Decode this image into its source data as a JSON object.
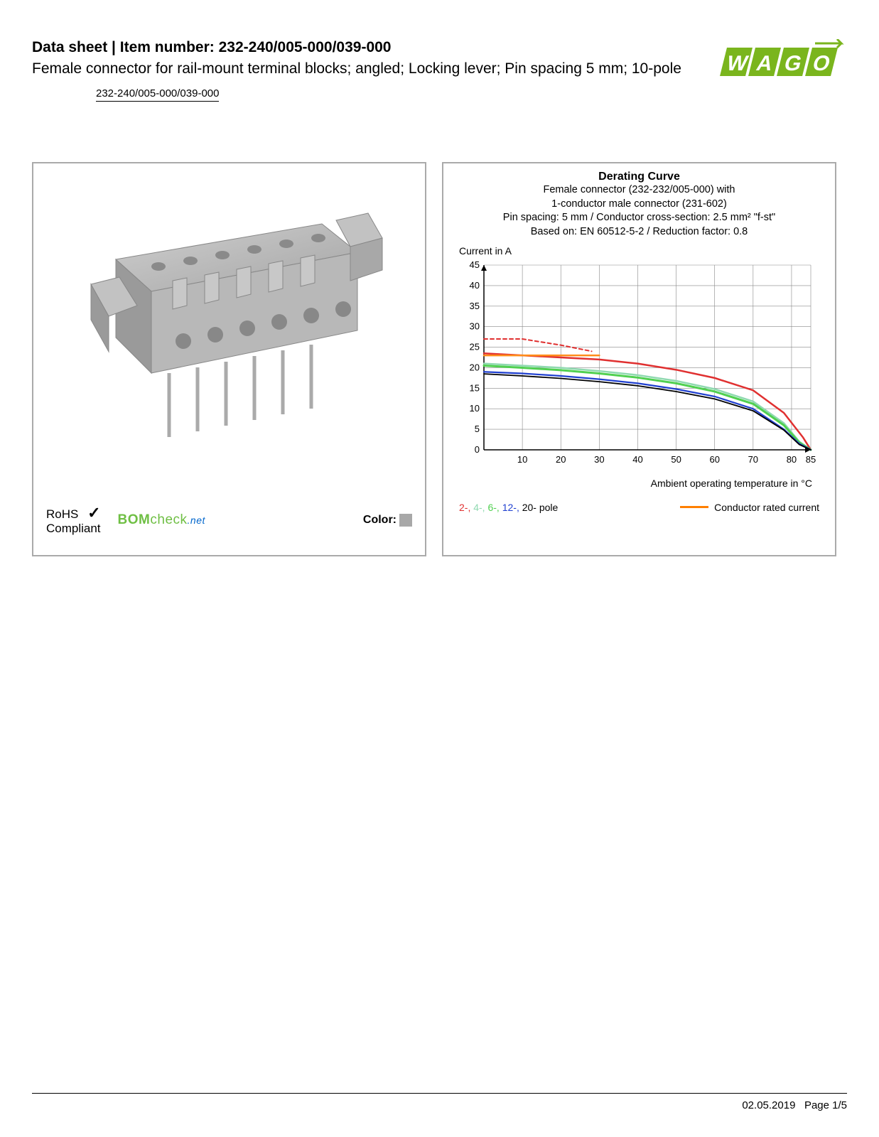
{
  "header": {
    "title_prefix": "Data sheet  |  Item number: ",
    "item_number": "232-240/005-000/039-000",
    "subtitle": "Female connector for rail-mount terminal blocks; angled; Locking lever; Pin spacing 5 mm; 10-pole",
    "item_tag": "232-240/005-000/039-000"
  },
  "logo": {
    "text": "WAGO",
    "fill": "#7ab51d",
    "shadow": "#5c8a14"
  },
  "product_panel": {
    "connector_color": "#b8b8b8",
    "connector_shadow": "#9a9a9a",
    "pin_color": "#c8c8c8",
    "rohs_line1": "RoHS",
    "rohs_line2": "Compliant",
    "bomcheck_main": "BOM",
    "bomcheck_check": "check",
    "bomcheck_net": ".net",
    "color_label": "Color:",
    "color_swatch": "#a8a8a8"
  },
  "chart": {
    "title": "Derating Curve",
    "sub1": "Female connector (232-232/005-000) with",
    "sub2": "1-conductor male connector (231-602)",
    "sub3": "Pin spacing: 5 mm / Conductor cross-section: 2.5 mm² \"f-st\"",
    "sub4": "Based on: EN 60512-5-2 / Reduction factor: 0.8",
    "y_axis_label": "Current in A",
    "x_axis_label": "Ambient operating temperature in °C",
    "xlim": [
      0,
      85
    ],
    "ylim": [
      0,
      45
    ],
    "x_ticks": [
      10,
      20,
      30,
      40,
      50,
      60,
      70,
      80,
      85
    ],
    "y_ticks": [
      0,
      5,
      10,
      15,
      20,
      25,
      30,
      35,
      40,
      45
    ],
    "grid_color": "#888",
    "axis_color": "#000",
    "plot_bg": "#ffffff",
    "series": [
      {
        "name": "2-pole",
        "color": "#e03030",
        "dash": "none",
        "width": 2.5,
        "points": [
          [
            0,
            23.5
          ],
          [
            10,
            23
          ],
          [
            20,
            22.5
          ],
          [
            30,
            22
          ],
          [
            40,
            21
          ],
          [
            50,
            19.5
          ],
          [
            60,
            17.5
          ],
          [
            70,
            14.5
          ],
          [
            78,
            9
          ],
          [
            83,
            3
          ],
          [
            85,
            0
          ]
        ]
      },
      {
        "name": "2-pole-dashed",
        "color": "#e03030",
        "dash": "5,4",
        "width": 2,
        "points": [
          [
            0,
            27
          ],
          [
            10,
            27
          ],
          [
            20,
            25.5
          ],
          [
            28,
            24
          ]
        ]
      },
      {
        "name": "4-pole",
        "color": "#8fd9b0",
        "dash": "none",
        "width": 2.5,
        "points": [
          [
            0,
            21
          ],
          [
            10,
            20.5
          ],
          [
            20,
            20
          ],
          [
            30,
            19.2
          ],
          [
            40,
            18.2
          ],
          [
            50,
            16.8
          ],
          [
            60,
            14.8
          ],
          [
            70,
            11.8
          ],
          [
            78,
            6.5
          ],
          [
            82,
            2
          ],
          [
            85,
            0
          ]
        ]
      },
      {
        "name": "6-pole",
        "color": "#50d050",
        "dash": "none",
        "width": 3,
        "points": [
          [
            0,
            20.5
          ],
          [
            10,
            20
          ],
          [
            20,
            19.4
          ],
          [
            30,
            18.6
          ],
          [
            40,
            17.6
          ],
          [
            50,
            16.2
          ],
          [
            60,
            14.2
          ],
          [
            70,
            11.2
          ],
          [
            78,
            6
          ],
          [
            82,
            1.8
          ],
          [
            85,
            0
          ]
        ]
      },
      {
        "name": "12-pole",
        "color": "#2040d0",
        "dash": "none",
        "width": 2.2,
        "points": [
          [
            0,
            19
          ],
          [
            10,
            18.6
          ],
          [
            20,
            18
          ],
          [
            30,
            17.2
          ],
          [
            40,
            16.2
          ],
          [
            50,
            14.8
          ],
          [
            60,
            13
          ],
          [
            70,
            10
          ],
          [
            78,
            5
          ],
          [
            82,
            1.5
          ],
          [
            85,
            0
          ]
        ]
      },
      {
        "name": "20-pole",
        "color": "#000000",
        "dash": "none",
        "width": 1.8,
        "points": [
          [
            0,
            18.5
          ],
          [
            10,
            18
          ],
          [
            20,
            17.4
          ],
          [
            30,
            16.6
          ],
          [
            40,
            15.6
          ],
          [
            50,
            14.2
          ],
          [
            60,
            12.4
          ],
          [
            70,
            9.5
          ],
          [
            78,
            4.8
          ],
          [
            82,
            1.3
          ],
          [
            85,
            0
          ]
        ]
      },
      {
        "name": "conductor-rated",
        "color": "#ff8c1a",
        "dash": "none",
        "width": 2.5,
        "points": [
          [
            0,
            23
          ],
          [
            30,
            23
          ]
        ]
      }
    ],
    "legend": {
      "poles": [
        {
          "label": "2-, ",
          "color": "#e03030"
        },
        {
          "label": "4-, ",
          "color": "#8fd9b0"
        },
        {
          "label": "6-, ",
          "color": "#50d050"
        },
        {
          "label": "12-, ",
          "color": "#2040d0"
        },
        {
          "label": "20- ",
          "color": "#000000"
        }
      ],
      "pole_suffix": "pole",
      "rated_label": "Conductor rated current",
      "rated_color": "#ff7f00"
    }
  },
  "footer": {
    "date": "02.05.2019",
    "page": "Page 1/5"
  }
}
